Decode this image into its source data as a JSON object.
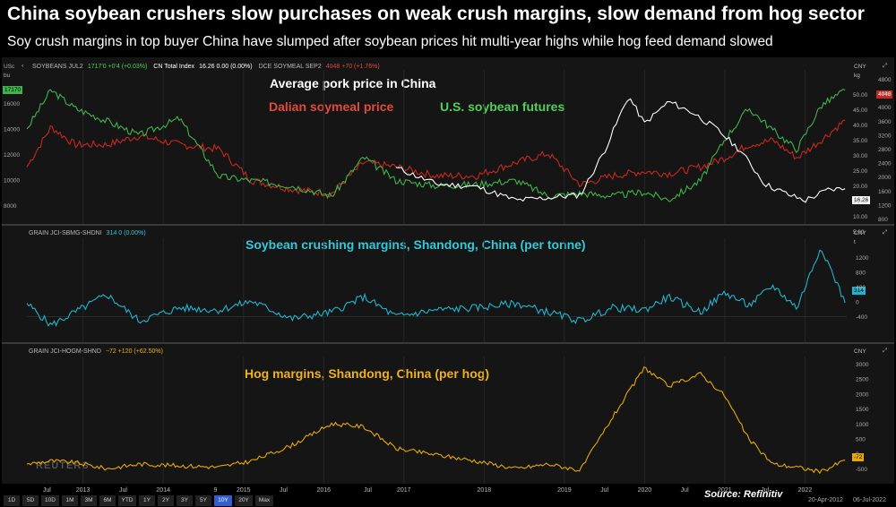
{
  "header": {
    "title": "China soybean crushers slow purchases on weak crush margins, slow demand from hog sector",
    "subtitle": "Soy crush margins in top buyer China have slumped after soybean prices hit multi-year highs while hog feed demand slowed"
  },
  "pane1": {
    "header_items": [
      {
        "label": "SOYBEANS JUL2",
        "value": "1717'0 +0'4 (+0.03%)"
      },
      {
        "label": "CN Total Index",
        "value": "16.26 0.00 (0.00%)"
      },
      {
        "label": "DCE SOYMEAL SEP2",
        "value": "4048 +70 (+1.76%)"
      }
    ],
    "left_unit": "USc",
    "left_unit2": "bu",
    "left_badge": "17170",
    "right_unit": "CNY",
    "right_unit2": "kg",
    "right_badge_top": "4048",
    "right_badge_bottom": "16.26",
    "annotations": {
      "pork": "Average pork price in China",
      "soymeal": "Dalian soymeal price",
      "soybean": "U.S. soybean futures"
    }
  },
  "pane2": {
    "header": "GRAIN JCI-SBMG-SHDNI",
    "header_value": "314 0 (0.00%)",
    "right_unit": "CNY",
    "right_unit2": "t",
    "badge": "314",
    "annotation": "Soybean crushing margins, Shandong, China (per tonne)"
  },
  "pane3": {
    "header": "GRAIN JCI-HOGM-SHND",
    "header_value": "−72 +120 (+62.50%)",
    "right_unit": "CNY",
    "badge": "-72",
    "annotation": "Hog margins, Shandong, China (per hog)"
  },
  "footer": {
    "timeframes": [
      "1D",
      "5D",
      "10D",
      "1M",
      "3M",
      "6M",
      "YTD",
      "1Y",
      "2Y",
      "3Y",
      "5Y",
      "10Y",
      "20Y",
      "Max"
    ],
    "active_timeframe": "10Y",
    "date_from": "20-Apr-2012",
    "date_to": "06-Jul-2022",
    "source": "Source: Refinitiv",
    "watermark": "REUTERS"
  },
  "colors": {
    "soybean": "#3fb34a",
    "soymeal": "#c8281c",
    "pork": "#ffffff",
    "crush": "#1fb5cf",
    "hog": "#e8a800"
  },
  "chart_data": [
    {
      "type": "line",
      "title": "",
      "x_ticks": [
        "Jul",
        "2013",
        "Jul",
        "2014",
        "9",
        "2015",
        "Jul",
        "2016",
        "Jul",
        "2017",
        "2018",
        "2019",
        "Jul",
        "2020",
        "Jul",
        "2021",
        "Jul",
        "2022"
      ],
      "series": [
        {
          "name": "U.S. soybean futures",
          "axis": "left (USc/bu)",
          "x": [
            2012.3,
            2012.6,
            2012.9,
            2013.3,
            2013.7,
            2014.2,
            2014.7,
            2015.1,
            2015.6,
            2016.1,
            2016.5,
            2016.9,
            2017.4,
            2017.9,
            2018.4,
            2018.8,
            2019.2,
            2019.6,
            2020.0,
            2020.3,
            2020.7,
            2021.0,
            2021.3,
            2021.6,
            2021.9,
            2022.2,
            2022.5
          ],
          "values": [
            1400,
            1700,
            1560,
            1460,
            1350,
            1480,
            1030,
            1000,
            960,
            880,
            1180,
            1000,
            960,
            970,
            1000,
            880,
            900,
            880,
            910,
            850,
            1000,
            1320,
            1560,
            1390,
            1240,
            1580,
            1700
          ]
        },
        {
          "name": "Dalian soymeal price",
          "axis": "right (CNY/t)",
          "x": [
            2012.3,
            2012.6,
            2012.9,
            2013.3,
            2013.7,
            2014.2,
            2014.7,
            2015.1,
            2015.6,
            2016.1,
            2016.5,
            2016.9,
            2017.4,
            2017.9,
            2018.4,
            2018.8,
            2019.2,
            2019.6,
            2020.0,
            2020.3,
            2020.7,
            2021.0,
            2021.3,
            2021.6,
            2021.9,
            2022.2,
            2022.5
          ],
          "values": [
            3000,
            3900,
            3500,
            3500,
            3700,
            3500,
            3400,
            2700,
            2500,
            2400,
            3100,
            3000,
            2800,
            2800,
            3100,
            3300,
            2600,
            2800,
            2900,
            2850,
            3000,
            3200,
            3500,
            3600,
            3200,
            3600,
            4048
          ]
        },
        {
          "name": "Average pork price in China",
          "axis": "right (CNY/kg)",
          "x": [
            2016.9,
            2017.4,
            2017.9,
            2018.4,
            2018.8,
            2019.2,
            2019.5,
            2019.8,
            2020.0,
            2020.3,
            2020.6,
            2020.9,
            2021.2,
            2021.5,
            2021.8,
            2022.0,
            2022.3,
            2022.5
          ],
          "values": [
            24,
            18,
            17,
            12,
            13,
            14,
            30,
            50,
            40,
            48,
            44,
            38,
            30,
            18,
            14,
            12,
            16,
            16.26
          ]
        }
      ],
      "left_ylim": [
        700,
        1800
      ],
      "left_ticks": [
        "16000",
        "14000",
        "12000",
        "10000",
        "8000"
      ],
      "right_ticks_cny_t": [
        "4800",
        "4400",
        "4000",
        "3600",
        "3200",
        "2800",
        "2400",
        "2000",
        "1600",
        "1200",
        "800"
      ],
      "right_ticks_cny_kg": [
        "50.00",
        "45.00",
        "40.00",
        "35.00",
        "30.00",
        "25.00",
        "20.00",
        "15.00",
        "10.00",
        "5.00"
      ]
    },
    {
      "type": "line",
      "title": "Soybean crushing margins, Shandong, China (per tonne)",
      "series": [
        {
          "name": "Soybean crushing margins",
          "x": [
            2012.3,
            2012.6,
            2012.9,
            2013.3,
            2013.7,
            2014.2,
            2014.7,
            2015.1,
            2015.6,
            2016.1,
            2016.5,
            2016.9,
            2017.4,
            2017.9,
            2018.4,
            2018.8,
            2019.2,
            2019.6,
            2020.0,
            2020.3,
            2020.7,
            2021.0,
            2021.3,
            2021.6,
            2021.9,
            2022.2,
            2022.5
          ],
          "values": [
            300,
            -200,
            100,
            500,
            -100,
            200,
            150,
            350,
            -50,
            100,
            450,
            0,
            150,
            200,
            300,
            100,
            -100,
            200,
            150,
            450,
            100,
            550,
            250,
            700,
            200,
            1600,
            314
          ]
        }
      ],
      "ylim": [
        -500,
        1700
      ],
      "y_ticks": [
        "1200",
        "800",
        "400",
        "0",
        "-400"
      ]
    },
    {
      "type": "line",
      "title": "Hog margins, Shandong, China (per hog)",
      "series": [
        {
          "name": "Hog margins",
          "x": [
            2012.3,
            2012.6,
            2012.9,
            2013.3,
            2013.7,
            2014.2,
            2014.7,
            2015.1,
            2015.6,
            2016.1,
            2016.5,
            2016.9,
            2017.4,
            2017.9,
            2018.4,
            2018.8,
            2019.2,
            2019.6,
            2020.0,
            2020.3,
            2020.7,
            2021.0,
            2021.3,
            2021.6,
            2021.9,
            2022.2,
            2022.5
          ],
          "values": [
            -200,
            -100,
            -150,
            -350,
            -200,
            -250,
            -300,
            -100,
            400,
            1100,
            1000,
            300,
            100,
            -100,
            -350,
            -200,
            -400,
            1300,
            2900,
            2300,
            2700,
            2000,
            600,
            -200,
            -300,
            -450,
            -72
          ]
        }
      ],
      "ylim": [
        -600,
        3200
      ],
      "y_ticks": [
        "3000",
        "2500",
        "2000",
        "1500",
        "1000",
        "500",
        "0",
        "-500"
      ]
    }
  ]
}
